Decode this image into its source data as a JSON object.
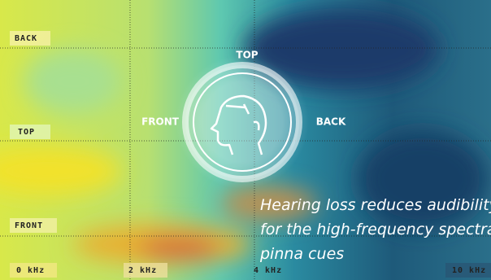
{
  "row_labels": [
    "BACK",
    "TOP",
    "FRONT"
  ],
  "freq_labels": [
    "0 kHz",
    "2 kHz",
    "4 kHz",
    "10 kHz"
  ],
  "head_labels": {
    "top": "TOP",
    "front": "FRONT",
    "back": "BACK"
  },
  "caption": [
    "Hearing loss reduces audibility",
    "for the high-frequency spectral",
    "pinna cues"
  ]
}
